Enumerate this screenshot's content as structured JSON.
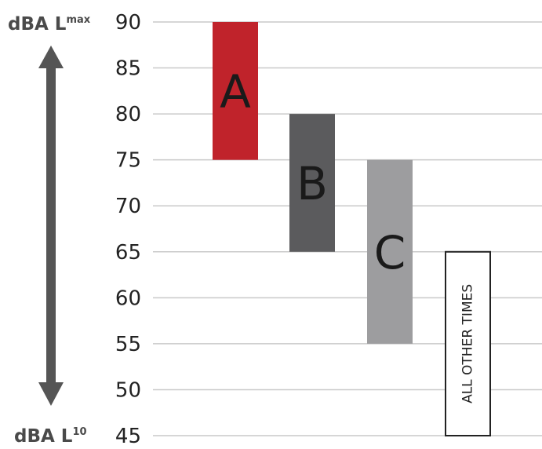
{
  "chart_data": {
    "type": "bar",
    "subtype": "floating-range",
    "axis": {
      "top_label": {
        "main": "dBA L",
        "sup": "max"
      },
      "bottom_label": {
        "main": "dBA L",
        "sup": "10"
      },
      "ylim": [
        45,
        90
      ],
      "ticks": [
        90,
        85,
        80,
        75,
        70,
        65,
        60,
        55,
        50,
        45
      ],
      "grid": true,
      "arrow": "double-headed vertical"
    },
    "series": [
      {
        "label": "A",
        "low": 75,
        "high": 90,
        "color": "#c0232b",
        "text_color": "#1a1a1a"
      },
      {
        "label": "B",
        "low": 65,
        "high": 80,
        "color": "#5b5b5d",
        "text_color": "#1a1a1a"
      },
      {
        "label": "C",
        "low": 55,
        "high": 75,
        "color": "#9d9d9f",
        "text_color": "#1a1a1a"
      },
      {
        "label": "ALL OTHER TIMES",
        "low": 45,
        "high": 65,
        "color": "#ffffff",
        "outline": "#222222",
        "text_color": "#222222",
        "text_orientation": "vertical"
      }
    ],
    "colors": {
      "grid": "#c9c9c9",
      "arrow": "#555555",
      "tick_text": "#222222",
      "axis_title": "#4a4a4a"
    }
  }
}
